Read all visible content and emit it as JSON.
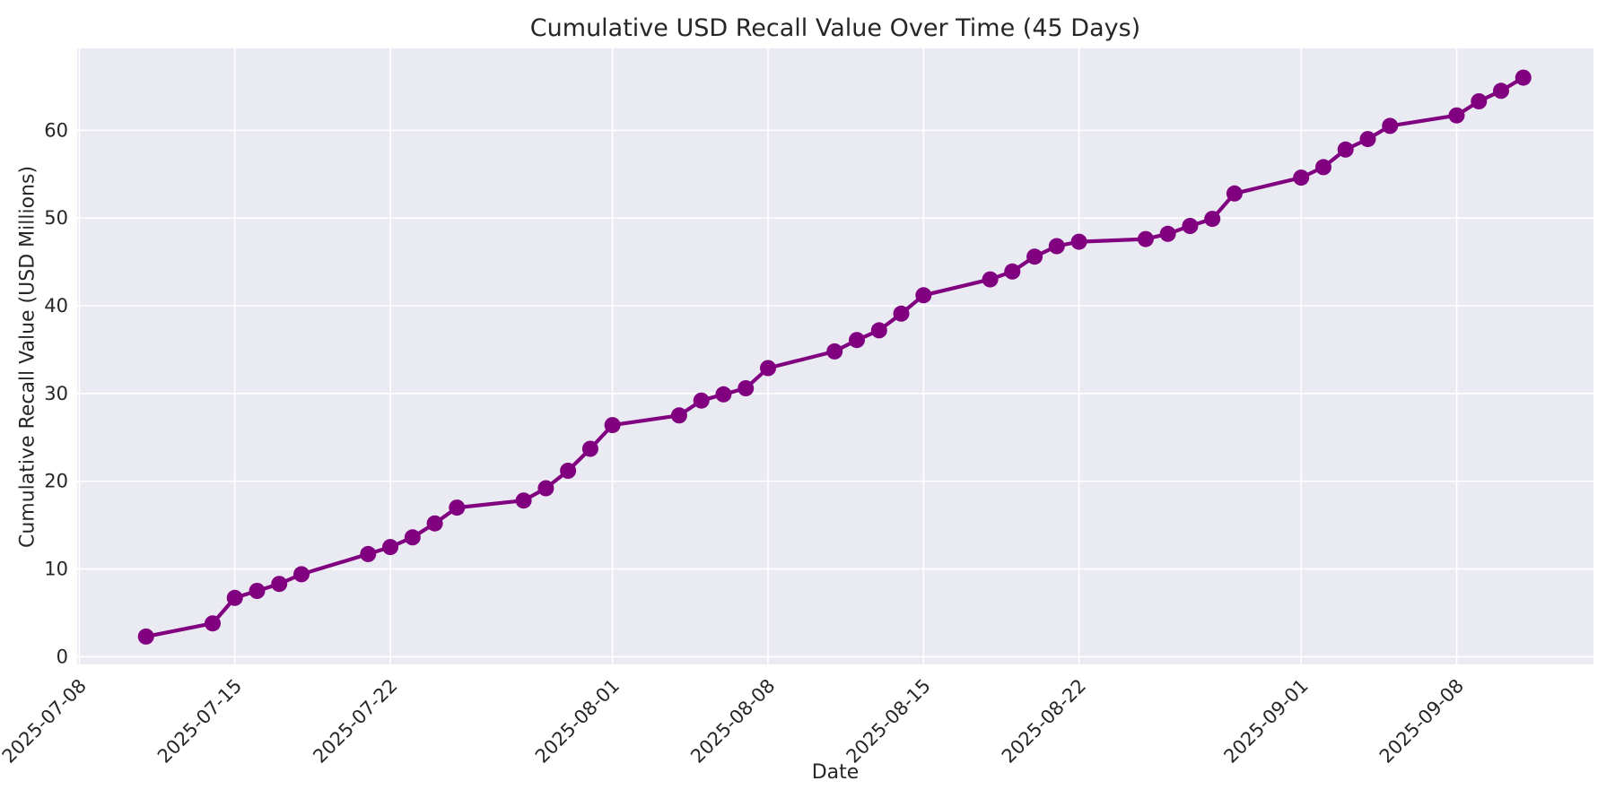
{
  "figure": {
    "background_color": "#ffffff",
    "plot_background_color": "#eaeaf2",
    "grid_color": "#ffffff",
    "text_color": "#262626"
  },
  "chart_data": {
    "type": "line",
    "title": "Cumulative USD Recall Value Over Time (45 Days)",
    "xlabel": "Date",
    "ylabel": "Cumulative Recall Value (USD Millions)",
    "grid": true,
    "legend": "none",
    "marker": "circle",
    "x_tick_labels": [
      "2025-07-08",
      "2025-07-15",
      "2025-07-22",
      "2025-08-01",
      "2025-08-08",
      "2025-08-15",
      "2025-08-22",
      "2025-09-01",
      "2025-09-08"
    ],
    "y_tick_labels": [
      "0",
      "10",
      "20",
      "30",
      "40",
      "50",
      "60"
    ],
    "y_ticks": [
      0,
      10,
      20,
      30,
      40,
      50,
      60
    ],
    "ylim": [
      -0.9,
      69.3
    ],
    "xlim": [
      "2025-07-08",
      "2025-09-14"
    ],
    "series": [
      {
        "name": "Cumulative USD Recall Value",
        "color": "#800080",
        "dates": [
          "2025-07-11",
          "2025-07-14",
          "2025-07-15",
          "2025-07-16",
          "2025-07-17",
          "2025-07-18",
          "2025-07-21",
          "2025-07-22",
          "2025-07-23",
          "2025-07-24",
          "2025-07-25",
          "2025-07-28",
          "2025-07-29",
          "2025-07-30",
          "2025-07-31",
          "2025-08-01",
          "2025-08-04",
          "2025-08-05",
          "2025-08-06",
          "2025-08-07",
          "2025-08-08",
          "2025-08-11",
          "2025-08-12",
          "2025-08-13",
          "2025-08-14",
          "2025-08-15",
          "2025-08-18",
          "2025-08-19",
          "2025-08-20",
          "2025-08-21",
          "2025-08-22",
          "2025-08-25",
          "2025-08-26",
          "2025-08-27",
          "2025-08-28",
          "2025-08-29",
          "2025-09-01",
          "2025-09-02",
          "2025-09-03",
          "2025-09-04",
          "2025-09-05",
          "2025-09-08",
          "2025-09-09",
          "2025-09-10",
          "2025-09-11"
        ],
        "values": [
          2.3,
          3.8,
          6.7,
          7.5,
          8.3,
          9.4,
          11.7,
          12.5,
          13.6,
          15.2,
          17.0,
          17.8,
          19.2,
          21.2,
          23.7,
          26.4,
          27.5,
          29.2,
          29.9,
          30.6,
          32.9,
          34.8,
          36.1,
          37.2,
          39.1,
          41.2,
          43.0,
          43.9,
          45.6,
          46.8,
          47.3,
          47.6,
          48.2,
          49.1,
          49.9,
          52.8,
          54.6,
          55.8,
          57.8,
          59.0,
          60.5,
          61.7,
          63.3,
          64.5,
          66.0
        ]
      }
    ]
  }
}
